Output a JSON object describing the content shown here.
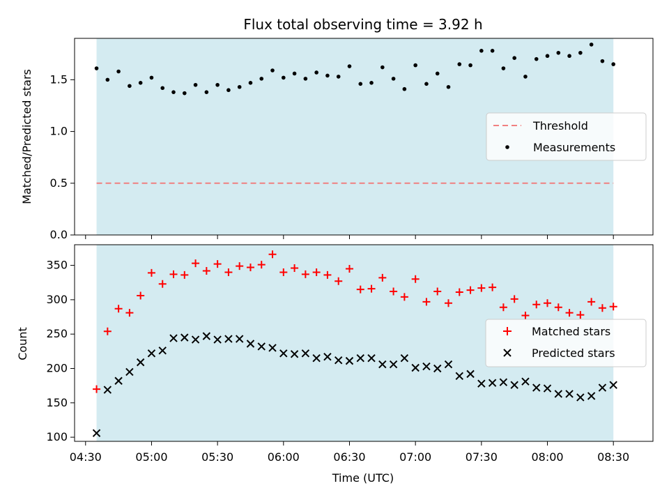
{
  "chart_data": [
    {
      "type": "scatter",
      "title": "Flux total observing time = 3.92 h",
      "xlabel": "",
      "ylabel": "Matched/Predicted stars",
      "ylim": [
        0,
        1.9
      ],
      "yticks": [
        0.0,
        0.5,
        1.0,
        1.5
      ],
      "ytick_labels": [
        "0.0",
        "0.5",
        "1.0",
        "1.5"
      ],
      "xlim": [
        "04:25",
        "08:48"
      ],
      "shaded_range": [
        "04:35",
        "08:30"
      ],
      "shade_color": "#d4ebf1",
      "grid": false,
      "legend_position": "center-right",
      "threshold": {
        "name": "Threshold",
        "y": 0.5,
        "color": "#f08080",
        "style": "dashed"
      },
      "series": [
        {
          "name": "Measurements",
          "marker": "dot",
          "color": "#000000",
          "x": [
            "04:35",
            "04:40",
            "04:45",
            "04:50",
            "04:55",
            "05:00",
            "05:05",
            "05:10",
            "05:15",
            "05:20",
            "05:25",
            "05:30",
            "05:35",
            "05:40",
            "05:45",
            "05:50",
            "05:55",
            "06:00",
            "06:05",
            "06:10",
            "06:15",
            "06:20",
            "06:25",
            "06:30",
            "06:35",
            "06:40",
            "06:45",
            "06:50",
            "06:55",
            "07:00",
            "07:05",
            "07:10",
            "07:15",
            "07:20",
            "07:25",
            "07:30",
            "07:35",
            "07:40",
            "07:45",
            "07:50",
            "07:55",
            "08:00",
            "08:05",
            "08:10",
            "08:15",
            "08:20",
            "08:25",
            "08:30"
          ],
          "values": [
            1.61,
            1.5,
            1.58,
            1.44,
            1.47,
            1.52,
            1.42,
            1.38,
            1.37,
            1.45,
            1.38,
            1.45,
            1.4,
            1.43,
            1.47,
            1.51,
            1.59,
            1.52,
            1.56,
            1.51,
            1.57,
            1.54,
            1.53,
            1.63,
            1.46,
            1.47,
            1.62,
            1.51,
            1.41,
            1.64,
            1.46,
            1.56,
            1.43,
            1.65,
            1.64,
            1.78,
            1.78,
            1.61,
            1.71,
            1.53,
            1.7,
            1.73,
            1.76,
            1.73,
            1.76,
            1.84,
            1.68,
            1.65
          ]
        }
      ]
    },
    {
      "type": "scatter",
      "title": "",
      "xlabel": "Time (UTC)",
      "ylabel": "Count",
      "ylim": [
        94,
        380
      ],
      "yticks": [
        100,
        150,
        200,
        250,
        300,
        350
      ],
      "ytick_labels": [
        "100",
        "150",
        "200",
        "250",
        "300",
        "350"
      ],
      "xticks": [
        "04:30",
        "05:00",
        "05:30",
        "06:00",
        "06:30",
        "07:00",
        "07:30",
        "08:00",
        "08:30"
      ],
      "xlim": [
        "04:25",
        "08:48"
      ],
      "shaded_range": [
        "04:35",
        "08:30"
      ],
      "shade_color": "#d4ebf1",
      "grid": false,
      "legend_position": "center-right",
      "x": [
        "04:35",
        "04:40",
        "04:45",
        "04:50",
        "04:55",
        "05:00",
        "05:05",
        "05:10",
        "05:15",
        "05:20",
        "05:25",
        "05:30",
        "05:35",
        "05:40",
        "05:45",
        "05:50",
        "05:55",
        "06:00",
        "06:05",
        "06:10",
        "06:15",
        "06:20",
        "06:25",
        "06:30",
        "06:35",
        "06:40",
        "06:45",
        "06:50",
        "06:55",
        "07:00",
        "07:05",
        "07:10",
        "07:15",
        "07:20",
        "07:25",
        "07:30",
        "07:35",
        "07:40",
        "07:45",
        "07:50",
        "07:55",
        "08:00",
        "08:05",
        "08:10",
        "08:15",
        "08:20",
        "08:25",
        "08:30"
      ],
      "series": [
        {
          "name": "Matched stars",
          "marker": "plus",
          "color": "#ff0000",
          "values": [
            170,
            254,
            287,
            281,
            306,
            339,
            323,
            337,
            336,
            353,
            342,
            352,
            340,
            349,
            347,
            351,
            366,
            340,
            346,
            337,
            340,
            336,
            327,
            345,
            315,
            316,
            332,
            312,
            304,
            330,
            297,
            312,
            295,
            311,
            314,
            317,
            318,
            289,
            301,
            277,
            293,
            295,
            289,
            281,
            278,
            297,
            288,
            290
          ]
        },
        {
          "name": "Predicted stars",
          "marker": "x",
          "color": "#000000",
          "values": [
            106,
            169,
            182,
            195,
            209,
            222,
            226,
            244,
            245,
            242,
            247,
            242,
            243,
            243,
            236,
            232,
            230,
            222,
            221,
            222,
            215,
            217,
            212,
            211,
            215,
            215,
            206,
            206,
            215,
            201,
            203,
            200,
            206,
            189,
            192,
            178,
            179,
            180,
            176,
            181,
            172,
            171,
            163,
            163,
            158,
            160,
            172,
            176
          ]
        }
      ]
    }
  ]
}
